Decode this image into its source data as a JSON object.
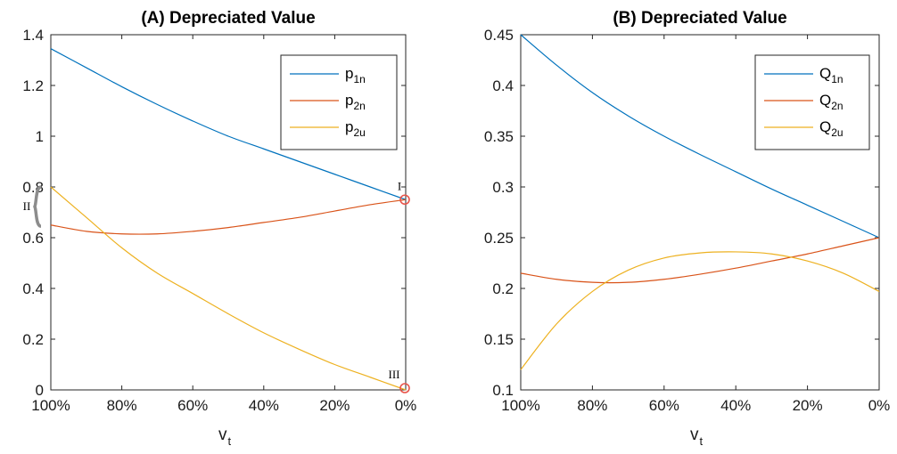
{
  "chart_data": [
    {
      "type": "line",
      "title": "(A) Depreciated Value",
      "xlabel": "v",
      "xlabel_sub": "t",
      "ylabel": "",
      "x_ticks": [
        "100%",
        "80%",
        "60%",
        "40%",
        "20%",
        "0%"
      ],
      "x": [
        100,
        90,
        80,
        70,
        60,
        50,
        40,
        30,
        20,
        10,
        0
      ],
      "xlim": [
        100,
        0
      ],
      "ylim": [
        0,
        1.4
      ],
      "y_ticks": [
        "0",
        "0.2",
        "0.4",
        "0.6",
        "0.8",
        "1",
        "1.2",
        "1.4"
      ],
      "grid": false,
      "legend_position": "top-right",
      "series": [
        {
          "name": "p",
          "sub": "1n",
          "color": "#0072BD",
          "values": [
            1.345,
            1.27,
            1.195,
            1.125,
            1.06,
            1.0,
            0.95,
            0.9,
            0.85,
            0.8,
            0.75
          ]
        },
        {
          "name": "p",
          "sub": "2n",
          "color": "#D95319",
          "values": [
            0.65,
            0.625,
            0.615,
            0.615,
            0.625,
            0.64,
            0.66,
            0.68,
            0.705,
            0.73,
            0.75
          ]
        },
        {
          "name": "p",
          "sub": "2u",
          "color": "#EDB120",
          "values": [
            0.8,
            0.68,
            0.56,
            0.46,
            0.38,
            0.3,
            0.225,
            0.16,
            0.1,
            0.05,
            0.0
          ]
        }
      ],
      "annotations": [
        {
          "text": "I",
          "x": 0,
          "y": 0.75
        },
        {
          "text": "II",
          "x": 100,
          "y": 0.7
        },
        {
          "text": "III",
          "x": 0,
          "y": 0.0
        }
      ]
    },
    {
      "type": "line",
      "title": "(B) Depreciated Value",
      "xlabel": "v",
      "xlabel_sub": "t",
      "ylabel": "",
      "x_ticks": [
        "100%",
        "80%",
        "60%",
        "40%",
        "20%",
        "0%"
      ],
      "x": [
        100,
        90,
        80,
        70,
        60,
        50,
        40,
        30,
        20,
        10,
        0
      ],
      "xlim": [
        100,
        0
      ],
      "ylim": [
        0.1,
        0.45
      ],
      "y_ticks": [
        "0.1",
        "0.15",
        "0.2",
        "0.25",
        "0.3",
        "0.35",
        "0.4",
        "0.45"
      ],
      "grid": false,
      "legend_position": "top-right",
      "series": [
        {
          "name": "Q",
          "sub": "1n",
          "color": "#0072BD",
          "values": [
            0.45,
            0.42,
            0.393,
            0.37,
            0.35,
            0.332,
            0.315,
            0.298,
            0.282,
            0.266,
            0.25
          ]
        },
        {
          "name": "Q",
          "sub": "2n",
          "color": "#D95319",
          "values": [
            0.215,
            0.209,
            0.206,
            0.206,
            0.209,
            0.214,
            0.22,
            0.227,
            0.234,
            0.242,
            0.25
          ]
        },
        {
          "name": "Q",
          "sub": "2u",
          "color": "#EDB120",
          "values": [
            0.12,
            0.165,
            0.197,
            0.218,
            0.23,
            0.235,
            0.236,
            0.234,
            0.227,
            0.215,
            0.197
          ]
        }
      ]
    }
  ]
}
